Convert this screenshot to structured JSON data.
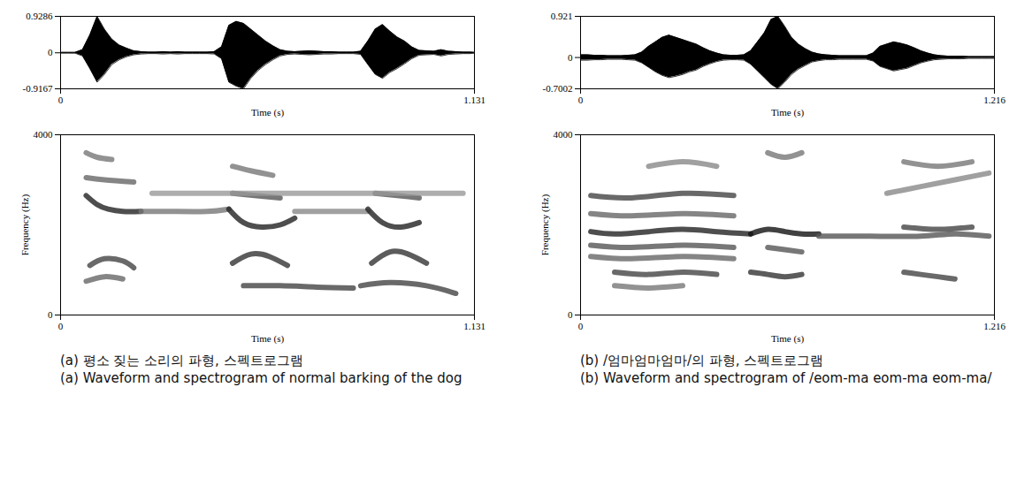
{
  "chart_data": [
    {
      "type": "area",
      "xlabel": "Time (s)",
      "color": "#000000",
      "xlim": [
        0,
        1.131
      ],
      "xticks": [
        0,
        1.131
      ],
      "ylim": [
        -0.9167,
        0.9286
      ],
      "yticks": [
        -0.9167,
        0,
        0.9286
      ],
      "x": [
        0,
        0.02,
        0.04,
        0.06,
        0.08,
        0.1,
        0.12,
        0.14,
        0.16,
        0.18,
        0.2,
        0.22,
        0.24,
        0.26,
        0.28,
        0.3,
        0.32,
        0.34,
        0.36,
        0.38,
        0.4,
        0.42,
        0.44,
        0.46,
        0.48,
        0.5,
        0.52,
        0.54,
        0.56,
        0.58,
        0.6,
        0.62,
        0.64,
        0.66,
        0.68,
        0.7,
        0.72,
        0.74,
        0.76,
        0.78,
        0.8,
        0.82,
        0.84,
        0.86,
        0.88,
        0.9,
        0.92,
        0.94,
        0.96,
        0.98,
        1.0,
        1.02,
        1.04,
        1.06,
        1.08,
        1.1,
        1.12,
        1.131
      ],
      "upper": [
        0.01,
        0.01,
        0.01,
        0.08,
        0.45,
        0.9286,
        0.6,
        0.35,
        0.2,
        0.12,
        0.05,
        0.03,
        0.02,
        0.02,
        0.03,
        0.02,
        0.03,
        0.02,
        0.02,
        0.02,
        0.02,
        0.03,
        0.15,
        0.7,
        0.8,
        0.75,
        0.6,
        0.45,
        0.3,
        0.18,
        0.08,
        0.04,
        0.03,
        0.04,
        0.05,
        0.04,
        0.03,
        0.03,
        0.02,
        0.02,
        0.02,
        0.04,
        0.3,
        0.6,
        0.72,
        0.55,
        0.4,
        0.3,
        0.15,
        0.06,
        0.05,
        0.04,
        0.08,
        0.04,
        0.03,
        0.02,
        0.02,
        0.01
      ],
      "lower": [
        -0.01,
        -0.01,
        -0.01,
        -0.08,
        -0.4,
        -0.75,
        -0.55,
        -0.3,
        -0.18,
        -0.1,
        -0.05,
        -0.03,
        -0.02,
        -0.02,
        -0.03,
        -0.02,
        -0.03,
        -0.02,
        -0.02,
        -0.02,
        -0.02,
        -0.03,
        -0.15,
        -0.75,
        -0.85,
        -0.9167,
        -0.65,
        -0.45,
        -0.3,
        -0.18,
        -0.08,
        -0.04,
        -0.03,
        -0.04,
        -0.05,
        -0.04,
        -0.03,
        -0.03,
        -0.02,
        -0.02,
        -0.02,
        -0.04,
        -0.3,
        -0.55,
        -0.65,
        -0.5,
        -0.4,
        -0.28,
        -0.15,
        -0.06,
        -0.05,
        -0.04,
        -0.08,
        -0.04,
        -0.03,
        -0.02,
        -0.02,
        -0.01
      ]
    },
    {
      "type": "line",
      "xlabel": "Time (s)",
      "ylabel": "Frequency (Hz)",
      "xlim": [
        0,
        1.131
      ],
      "xticks": [
        0,
        1.131
      ],
      "ylim": [
        0,
        4000
      ],
      "yticks": [
        0,
        4000
      ],
      "caption": [
        "(a) 평소 짖는 소리의 파형, 스펙트로그램",
        "(a) Waveform and spectrogram of normal barking of the dog"
      ],
      "series": [
        {
          "color": "#222222",
          "x": [
            0.07,
            0.1,
            0.13,
            0.17,
            0.22
          ],
          "values": [
            2650,
            2450,
            2350,
            2300,
            2300
          ]
        },
        {
          "color": "#777777",
          "x": [
            0.22,
            0.3,
            0.4,
            0.46
          ],
          "values": [
            2300,
            2300,
            2300,
            2350
          ]
        },
        {
          "color": "#222222",
          "x": [
            0.46,
            0.5,
            0.55,
            0.6,
            0.64
          ],
          "values": [
            2350,
            2050,
            1950,
            2000,
            2150
          ]
        },
        {
          "color": "#888888",
          "x": [
            0.64,
            0.75,
            0.84
          ],
          "values": [
            2300,
            2300,
            2300
          ]
        },
        {
          "color": "#222222",
          "x": [
            0.84,
            0.88,
            0.93,
            0.98
          ],
          "values": [
            2350,
            2050,
            1950,
            2050
          ]
        },
        {
          "color": "#444444",
          "x": [
            0.08,
            0.12,
            0.17,
            0.2
          ],
          "values": [
            1100,
            1250,
            1200,
            1050
          ]
        },
        {
          "color": "#333333",
          "x": [
            0.47,
            0.52,
            0.57,
            0.62
          ],
          "values": [
            1150,
            1350,
            1300,
            1100
          ]
        },
        {
          "color": "#333333",
          "x": [
            0.85,
            0.9,
            0.95,
            1.0
          ],
          "values": [
            1150,
            1400,
            1350,
            1150
          ]
        },
        {
          "color": "#666666",
          "x": [
            0.07,
            0.12,
            0.17
          ],
          "values": [
            750,
            850,
            800
          ]
        },
        {
          "color": "#444444",
          "x": [
            0.5,
            0.6,
            0.7,
            0.8
          ],
          "values": [
            650,
            650,
            620,
            600
          ]
        },
        {
          "color": "#444444",
          "x": [
            0.82,
            0.9,
            1.0,
            1.08
          ],
          "values": [
            650,
            720,
            650,
            480
          ]
        },
        {
          "color": "#666666",
          "x": [
            0.07,
            0.12,
            0.2
          ],
          "values": [
            3050,
            3000,
            2950
          ]
        },
        {
          "color": "#555555",
          "x": [
            0.47,
            0.53,
            0.6
          ],
          "values": [
            2700,
            2650,
            2600
          ]
        },
        {
          "color": "#555555",
          "x": [
            0.86,
            0.92,
            0.98
          ],
          "values": [
            2700,
            2650,
            2600
          ]
        },
        {
          "color": "#999999",
          "x": [
            0.25,
            0.5,
            0.8,
            1.1
          ],
          "values": [
            2700,
            2700,
            2700,
            2700
          ]
        },
        {
          "color": "#777777",
          "x": [
            0.47,
            0.52,
            0.58
          ],
          "values": [
            3300,
            3200,
            3100
          ]
        },
        {
          "color": "#777777",
          "x": [
            0.07,
            0.1,
            0.14
          ],
          "values": [
            3600,
            3500,
            3450
          ]
        }
      ]
    },
    {
      "type": "area",
      "xlabel": "Time (s)",
      "color": "#000000",
      "xlim": [
        0,
        1.216
      ],
      "xticks": [
        0,
        1.216
      ],
      "ylim": [
        -0.7002,
        0.921
      ],
      "yticks": [
        -0.7002,
        0,
        0.921
      ],
      "x": [
        0,
        0.02,
        0.04,
        0.06,
        0.08,
        0.1,
        0.12,
        0.14,
        0.16,
        0.18,
        0.2,
        0.22,
        0.24,
        0.26,
        0.28,
        0.3,
        0.32,
        0.34,
        0.36,
        0.38,
        0.4,
        0.42,
        0.44,
        0.46,
        0.48,
        0.5,
        0.52,
        0.54,
        0.56,
        0.58,
        0.6,
        0.62,
        0.64,
        0.66,
        0.68,
        0.7,
        0.72,
        0.74,
        0.76,
        0.78,
        0.8,
        0.82,
        0.84,
        0.86,
        0.88,
        0.9,
        0.92,
        0.94,
        0.96,
        0.98,
        1.0,
        1.02,
        1.04,
        1.06,
        1.08,
        1.1,
        1.12,
        1.14,
        1.16,
        1.18,
        1.2,
        1.216
      ],
      "upper": [
        0.06,
        0.06,
        0.05,
        0.05,
        0.04,
        0.04,
        0.04,
        0.05,
        0.06,
        0.12,
        0.25,
        0.35,
        0.45,
        0.5,
        0.45,
        0.4,
        0.35,
        0.3,
        0.22,
        0.15,
        0.1,
        0.06,
        0.05,
        0.05,
        0.06,
        0.15,
        0.35,
        0.55,
        0.85,
        0.921,
        0.7,
        0.45,
        0.3,
        0.2,
        0.12,
        0.08,
        0.06,
        0.05,
        0.04,
        0.04,
        0.04,
        0.04,
        0.04,
        0.1,
        0.25,
        0.3,
        0.35,
        0.32,
        0.28,
        0.22,
        0.15,
        0.1,
        0.06,
        0.04,
        0.03,
        0.03,
        0.03,
        0.02,
        0.02,
        0.02,
        0.02,
        0.02
      ],
      "lower": [
        -0.06,
        -0.06,
        -0.05,
        -0.05,
        -0.04,
        -0.04,
        -0.04,
        -0.05,
        -0.06,
        -0.12,
        -0.22,
        -0.32,
        -0.4,
        -0.45,
        -0.42,
        -0.38,
        -0.32,
        -0.28,
        -0.2,
        -0.14,
        -0.09,
        -0.06,
        -0.05,
        -0.05,
        -0.06,
        -0.15,
        -0.3,
        -0.45,
        -0.6,
        -0.7002,
        -0.55,
        -0.38,
        -0.26,
        -0.18,
        -0.1,
        -0.07,
        -0.05,
        -0.05,
        -0.04,
        -0.04,
        -0.04,
        -0.04,
        -0.04,
        -0.08,
        -0.2,
        -0.25,
        -0.3,
        -0.27,
        -0.24,
        -0.18,
        -0.12,
        -0.08,
        -0.05,
        -0.04,
        -0.03,
        -0.03,
        -0.03,
        -0.02,
        -0.02,
        -0.02,
        -0.02,
        -0.02
      ]
    },
    {
      "type": "line",
      "xlabel": "Time (s)",
      "ylabel": "Frequency (Hz)",
      "xlim": [
        0,
        1.216
      ],
      "xticks": [
        0,
        1.216
      ],
      "ylim": [
        0,
        4000
      ],
      "yticks": [
        0,
        4000
      ],
      "caption": [
        "(b) /엄마엄마엄마/의 파형, 스펙트로그램",
        "(b) Waveform and spectrogram of /eom-ma eom-ma eom-ma/"
      ],
      "series": [
        {
          "color": "#222222",
          "x": [
            0.03,
            0.1,
            0.2,
            0.3,
            0.4,
            0.5
          ],
          "values": [
            1850,
            1800,
            1850,
            1900,
            1850,
            1800
          ]
        },
        {
          "color": "#111111",
          "x": [
            0.5,
            0.55,
            0.6,
            0.65,
            0.7
          ],
          "values": [
            1800,
            1900,
            1850,
            1800,
            1800
          ]
        },
        {
          "color": "#555555",
          "x": [
            0.7,
            0.85,
            1.0,
            1.1,
            1.2
          ],
          "values": [
            1750,
            1750,
            1750,
            1800,
            1750
          ]
        },
        {
          "color": "#555555",
          "x": [
            0.03,
            0.15,
            0.3,
            0.45
          ],
          "values": [
            1550,
            1500,
            1550,
            1500
          ]
        },
        {
          "color": "#444444",
          "x": [
            0.03,
            0.15,
            0.3,
            0.45
          ],
          "values": [
            2650,
            2600,
            2700,
            2650
          ]
        },
        {
          "color": "#666666",
          "x": [
            0.03,
            0.15,
            0.3,
            0.45
          ],
          "values": [
            2250,
            2200,
            2250,
            2200
          ]
        },
        {
          "color": "#666666",
          "x": [
            0.03,
            0.15,
            0.3,
            0.45
          ],
          "values": [
            1300,
            1250,
            1300,
            1250
          ]
        },
        {
          "color": "#444444",
          "x": [
            0.1,
            0.2,
            0.3,
            0.4
          ],
          "values": [
            950,
            900,
            950,
            900
          ]
        },
        {
          "color": "#777777",
          "x": [
            0.1,
            0.2,
            0.3
          ],
          "values": [
            650,
            600,
            650
          ]
        },
        {
          "color": "#333333",
          "x": [
            0.5,
            0.55,
            0.6,
            0.65
          ],
          "values": [
            950,
            900,
            850,
            900
          ]
        },
        {
          "color": "#444444",
          "x": [
            0.95,
            1.0,
            1.05,
            1.1
          ],
          "values": [
            950,
            900,
            850,
            800
          ]
        },
        {
          "color": "#777777",
          "x": [
            0.55,
            0.6,
            0.65
          ],
          "values": [
            3600,
            3500,
            3600
          ]
        },
        {
          "color": "#777777",
          "x": [
            0.95,
            1.05,
            1.15
          ],
          "values": [
            3400,
            3300,
            3400
          ]
        },
        {
          "color": "#888888",
          "x": [
            0.9,
            1.0,
            1.1,
            1.2
          ],
          "values": [
            2700,
            2850,
            3000,
            3150
          ]
        },
        {
          "color": "#888888",
          "x": [
            0.2,
            0.3,
            0.4
          ],
          "values": [
            3300,
            3400,
            3300
          ]
        },
        {
          "color": "#555555",
          "x": [
            0.55,
            0.6,
            0.65
          ],
          "values": [
            1500,
            1450,
            1400
          ]
        },
        {
          "color": "#444444",
          "x": [
            0.95,
            1.05,
            1.15
          ],
          "values": [
            1950,
            1900,
            1950
          ]
        }
      ]
    }
  ]
}
